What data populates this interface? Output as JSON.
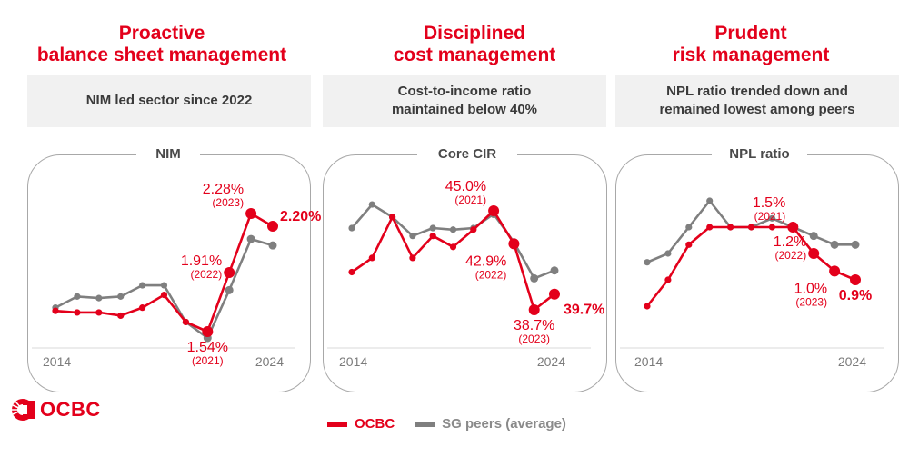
{
  "columns": [
    {
      "title_line1": "Proactive",
      "title_line2": "balance sheet management",
      "subtitle_line1": "NIM led sector since 2022",
      "subtitle_line2": ""
    },
    {
      "title_line1": "Disciplined",
      "title_line2": "cost management",
      "subtitle_line1": "Cost-to-income ratio",
      "subtitle_line2": "maintained below 40%"
    },
    {
      "title_line1": "Prudent",
      "title_line2": "risk management",
      "subtitle_line1": "NPL ratio trended down and",
      "subtitle_line2": "remained lowest among peers"
    }
  ],
  "colors": {
    "ocbc": "#e3001b",
    "peers": "#7f7f7f",
    "text_dark": "#3a3a3a"
  },
  "legend": {
    "ocbc": "OCBC",
    "peers": "SG peers (average)"
  },
  "logo": {
    "text": "OCBC",
    "icon": "ocbc-logo-icon"
  },
  "chart_data": [
    {
      "type": "line",
      "title": "NIM",
      "unit": "%",
      "x": [
        2014,
        2015,
        2016,
        2017,
        2018,
        2019,
        2020,
        2021,
        2022,
        2023,
        2024
      ],
      "x_tick_labels": [
        "2014",
        "2024"
      ],
      "ylim": [
        1.45,
        2.35
      ],
      "grid": false,
      "legend": "bottom",
      "series": [
        {
          "name": "OCBC",
          "values": [
            1.67,
            1.66,
            1.66,
            1.64,
            1.69,
            1.77,
            1.6,
            1.54,
            1.91,
            2.28,
            2.2
          ]
        },
        {
          "name": "SG peers (average)",
          "values": [
            1.69,
            1.76,
            1.75,
            1.76,
            1.83,
            1.83,
            1.6,
            1.5,
            1.8,
            2.12,
            2.08
          ]
        }
      ],
      "annotations": [
        {
          "index": 7,
          "value": "1.54%",
          "year": "(2021)",
          "pos": "below"
        },
        {
          "index": 8,
          "value": "1.91%",
          "year": "(2022)",
          "pos": "left"
        },
        {
          "index": 9,
          "value": "2.28%",
          "year": "(2023)",
          "pos": "above-left"
        },
        {
          "index": 10,
          "value": "2.20%",
          "year": "",
          "pos": "above-right",
          "bold": true
        }
      ]
    },
    {
      "type": "line",
      "title": "Core CIR",
      "unit": "%",
      "x": [
        2014,
        2015,
        2016,
        2017,
        2018,
        2019,
        2020,
        2021,
        2022,
        2023,
        2024
      ],
      "x_tick_labels": [
        "2014",
        "2024"
      ],
      "ylim": [
        36.5,
        47.0
      ],
      "grid": false,
      "legend": "bottom",
      "series": [
        {
          "name": "OCBC",
          "values": [
            41.1,
            42.0,
            44.6,
            42.0,
            43.4,
            42.7,
            43.8,
            45.0,
            42.9,
            38.7,
            39.7
          ]
        },
        {
          "name": "SG peers (average)",
          "values": [
            43.9,
            45.4,
            44.6,
            43.4,
            43.9,
            43.8,
            43.9,
            44.8,
            43.0,
            40.7,
            41.2
          ]
        }
      ],
      "annotations": [
        {
          "index": 7,
          "value": "45.0%",
          "year": "(2021)",
          "pos": "above-left"
        },
        {
          "index": 8,
          "value": "42.9%",
          "year": "(2022)",
          "pos": "below-left"
        },
        {
          "index": 9,
          "value": "38.7%",
          "year": "(2023)",
          "pos": "below"
        },
        {
          "index": 10,
          "value": "39.7%",
          "year": "",
          "pos": "below-right",
          "bold": true
        }
      ]
    },
    {
      "type": "line",
      "title": "NPL ratio",
      "unit": "%",
      "x": [
        2014,
        2015,
        2016,
        2017,
        2018,
        2019,
        2020,
        2021,
        2022,
        2023,
        2024
      ],
      "x_tick_labels": [
        "2014",
        "2024"
      ],
      "ylim": [
        0.3,
        2.1
      ],
      "grid": false,
      "legend": "bottom",
      "series": [
        {
          "name": "OCBC",
          "values": [
            0.6,
            0.9,
            1.3,
            1.5,
            1.5,
            1.5,
            1.5,
            1.5,
            1.2,
            1.0,
            0.9
          ]
        },
        {
          "name": "SG peers (average)",
          "values": [
            1.1,
            1.2,
            1.5,
            1.8,
            1.5,
            1.5,
            1.6,
            1.5,
            1.4,
            1.3,
            1.3
          ]
        }
      ],
      "annotations": [
        {
          "index": 7,
          "value": "1.5%",
          "year": "(2021)",
          "pos": "above-left"
        },
        {
          "index": 8,
          "value": "1.2%",
          "year": "(2022)",
          "pos": "left"
        },
        {
          "index": 9,
          "value": "1.0%",
          "year": "(2023)",
          "pos": "below-left"
        },
        {
          "index": 10,
          "value": "0.9%",
          "year": "",
          "pos": "below",
          "bold": true
        }
      ]
    }
  ]
}
